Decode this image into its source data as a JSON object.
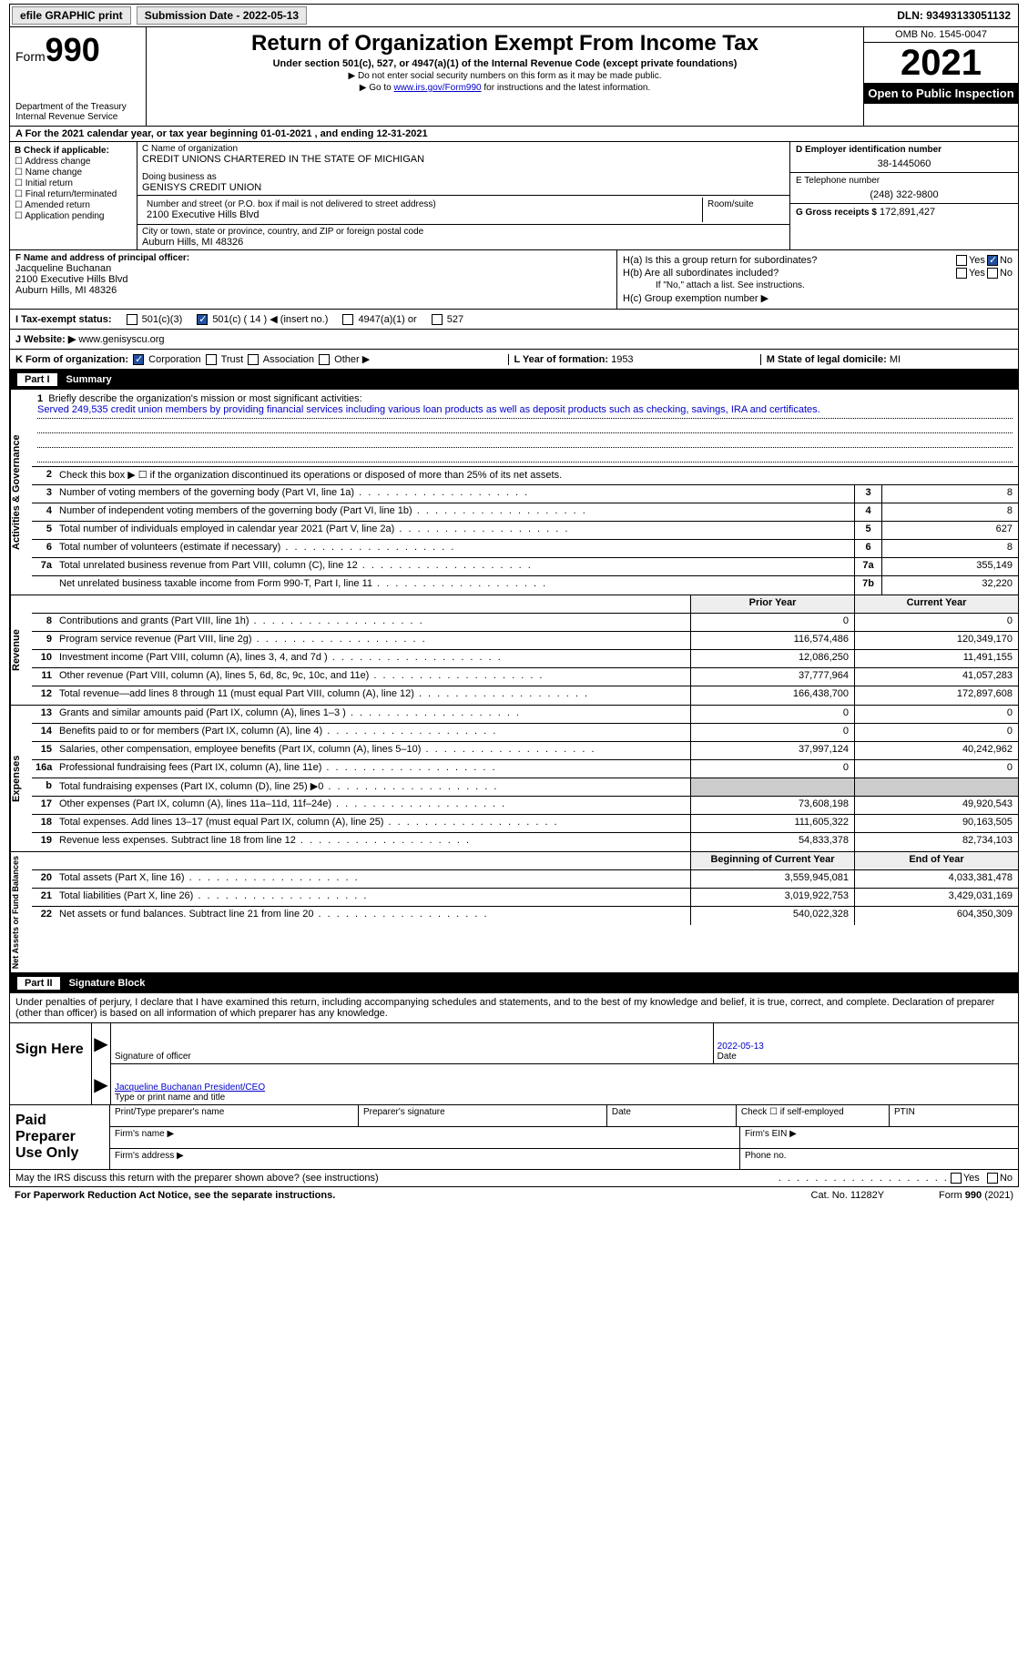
{
  "topbar": {
    "efile": "efile GRAPHIC print",
    "submission": "Submission Date - 2022-05-13",
    "dln_label": "DLN:",
    "dln": "93493133051132"
  },
  "header": {
    "form_label": "Form",
    "form_num": "990",
    "dept": "Department of the Treasury\nInternal Revenue Service",
    "title": "Return of Organization Exempt From Income Tax",
    "subtitle": "Under section 501(c), 527, or 4947(a)(1) of the Internal Revenue Code (except private foundations)",
    "note1": "▶ Do not enter social security numbers on this form as it may be made public.",
    "note2_prefix": "▶ Go to ",
    "note2_link": "www.irs.gov/Form990",
    "note2_suffix": " for instructions and the latest information.",
    "omb": "OMB No. 1545-0047",
    "year": "2021",
    "otp": "Open to Public Inspection"
  },
  "row_a": "A For the 2021 calendar year, or tax year beginning 01-01-2021   , and ending 12-31-2021",
  "col_b": {
    "title": "B Check if applicable:",
    "items": [
      "Address change",
      "Name change",
      "Initial return",
      "Final return/terminated",
      "Amended return",
      "Application pending"
    ]
  },
  "col_c": {
    "name_label": "C Name of organization",
    "name": "CREDIT UNIONS CHARTERED IN THE STATE OF MICHIGAN",
    "dba_label": "Doing business as",
    "dba": "GENISYS CREDIT UNION",
    "addr_label": "Number and street (or P.O. box if mail is not delivered to street address)",
    "addr": "2100 Executive Hills Blvd",
    "room_label": "Room/suite",
    "city_label": "City or town, state or province, country, and ZIP or foreign postal code",
    "city": "Auburn Hills, MI  48326"
  },
  "col_d": {
    "ein_label": "D Employer identification number",
    "ein": "38-1445060",
    "tel_label": "E Telephone number",
    "tel": "(248) 322-9800",
    "gross_label": "G Gross receipts $",
    "gross": "172,891,427"
  },
  "row_f": {
    "label": "F Name and address of principal officer:",
    "name": "Jacqueline Buchanan",
    "addr1": "2100 Executive Hills Blvd",
    "addr2": "Auburn Hills, MI  48326"
  },
  "row_h": {
    "ha": "H(a)  Is this a group return for subordinates?",
    "hb": "H(b)  Are all subordinates included?",
    "hb_note": "If \"No,\" attach a list. See instructions.",
    "hc": "H(c)  Group exemption number ▶",
    "yes": "Yes",
    "no": "No"
  },
  "row_i": {
    "label": "I  Tax-exempt status:",
    "opt1": "501(c)(3)",
    "opt2": "501(c) ( 14 ) ◀ (insert no.)",
    "opt3": "4947(a)(1) or",
    "opt4": "527"
  },
  "row_j": {
    "label": "J  Website: ▶",
    "val": "www.genisyscu.org"
  },
  "row_k": {
    "label": "K Form of organization:",
    "corp": "Corporation",
    "trust": "Trust",
    "assoc": "Association",
    "other": "Other ▶",
    "l_label": "L Year of formation:",
    "l_val": "1953",
    "m_label": "M State of legal domicile:",
    "m_val": "MI"
  },
  "part1": {
    "num": "Part I",
    "title": "Summary"
  },
  "summary": {
    "activities_label": "Activities & Governance",
    "revenue_label": "Revenue",
    "expenses_label": "Expenses",
    "netassets_label": "Net Assets or Fund Balances",
    "line1_label": "Briefly describe the organization's mission or most significant activities:",
    "line1_text": "Served 249,535 credit union members by providing financial services including various loan products as well as deposit products such as checking, savings, IRA and certificates.",
    "line2": "Check this box ▶ ☐ if the organization discontinued its operations or disposed of more than 25% of its net assets.",
    "lines_simple": [
      {
        "n": "3",
        "t": "Number of voting members of the governing body (Part VI, line 1a)",
        "b": "3",
        "v": "8"
      },
      {
        "n": "4",
        "t": "Number of independent voting members of the governing body (Part VI, line 1b)",
        "b": "4",
        "v": "8"
      },
      {
        "n": "5",
        "t": "Total number of individuals employed in calendar year 2021 (Part V, line 2a)",
        "b": "5",
        "v": "627"
      },
      {
        "n": "6",
        "t": "Total number of volunteers (estimate if necessary)",
        "b": "6",
        "v": "8"
      },
      {
        "n": "7a",
        "t": "Total unrelated business revenue from Part VIII, column (C), line 12",
        "b": "7a",
        "v": "355,149"
      },
      {
        "n": "",
        "t": "Net unrelated business taxable income from Form 990-T, Part I, line 11",
        "b": "7b",
        "v": "32,220"
      }
    ],
    "col_hdr_prior": "Prior Year",
    "col_hdr_current": "Current Year",
    "revenue_lines": [
      {
        "n": "8",
        "t": "Contributions and grants (Part VIII, line 1h)",
        "p": "0",
        "c": "0"
      },
      {
        "n": "9",
        "t": "Program service revenue (Part VIII, line 2g)",
        "p": "116,574,486",
        "c": "120,349,170"
      },
      {
        "n": "10",
        "t": "Investment income (Part VIII, column (A), lines 3, 4, and 7d )",
        "p": "12,086,250",
        "c": "11,491,155"
      },
      {
        "n": "11",
        "t": "Other revenue (Part VIII, column (A), lines 5, 6d, 8c, 9c, 10c, and 11e)",
        "p": "37,777,964",
        "c": "41,057,283"
      },
      {
        "n": "12",
        "t": "Total revenue—add lines 8 through 11 (must equal Part VIII, column (A), line 12)",
        "p": "166,438,700",
        "c": "172,897,608"
      }
    ],
    "expense_lines": [
      {
        "n": "13",
        "t": "Grants and similar amounts paid (Part IX, column (A), lines 1–3 )",
        "p": "0",
        "c": "0"
      },
      {
        "n": "14",
        "t": "Benefits paid to or for members (Part IX, column (A), line 4)",
        "p": "0",
        "c": "0"
      },
      {
        "n": "15",
        "t": "Salaries, other compensation, employee benefits (Part IX, column (A), lines 5–10)",
        "p": "37,997,124",
        "c": "40,242,962"
      },
      {
        "n": "16a",
        "t": "Professional fundraising fees (Part IX, column (A), line 11e)",
        "p": "0",
        "c": "0"
      },
      {
        "n": "b",
        "t": "Total fundraising expenses (Part IX, column (D), line 25) ▶0",
        "p": "",
        "c": "",
        "shade": true
      },
      {
        "n": "17",
        "t": "Other expenses (Part IX, column (A), lines 11a–11d, 11f–24e)",
        "p": "73,608,198",
        "c": "49,920,543"
      },
      {
        "n": "18",
        "t": "Total expenses. Add lines 13–17 (must equal Part IX, column (A), line 25)",
        "p": "111,605,322",
        "c": "90,163,505"
      },
      {
        "n": "19",
        "t": "Revenue less expenses. Subtract line 18 from line 12",
        "p": "54,833,378",
        "c": "82,734,103"
      }
    ],
    "col_hdr_begin": "Beginning of Current Year",
    "col_hdr_end": "End of Year",
    "net_lines": [
      {
        "n": "20",
        "t": "Total assets (Part X, line 16)",
        "p": "3,559,945,081",
        "c": "4,033,381,478"
      },
      {
        "n": "21",
        "t": "Total liabilities (Part X, line 26)",
        "p": "3,019,922,753",
        "c": "3,429,031,169"
      },
      {
        "n": "22",
        "t": "Net assets or fund balances. Subtract line 21 from line 20",
        "p": "540,022,328",
        "c": "604,350,309"
      }
    ]
  },
  "part2": {
    "num": "Part II",
    "title": "Signature Block"
  },
  "sig": {
    "intro": "Under penalties of perjury, I declare that I have examined this return, including accompanying schedules and statements, and to the best of my knowledge and belief, it is true, correct, and complete. Declaration of preparer (other than officer) is based on all information of which preparer has any knowledge.",
    "sign_here": "Sign Here",
    "sig_officer": "Signature of officer",
    "date": "Date",
    "date_val": "2022-05-13",
    "officer_name": "Jacqueline Buchanan  President/CEO",
    "name_label": "Type or print name and title"
  },
  "ppu": {
    "title": "Paid Preparer Use Only",
    "r1c1": "Print/Type preparer's name",
    "r1c2": "Preparer's signature",
    "r1c3": "Date",
    "r1c4": "Check ☐ if self-employed",
    "r1c5": "PTIN",
    "r2c1": "Firm's name   ▶",
    "r2c2": "Firm's EIN ▶",
    "r3c1": "Firm's address ▶",
    "r3c2": "Phone no."
  },
  "footer": {
    "discuss": "May the IRS discuss this return with the preparer shown above? (see instructions)",
    "yes": "Yes",
    "no": "No",
    "pra": "For Paperwork Reduction Act Notice, see the separate instructions.",
    "cat": "Cat. No. 11282Y",
    "form": "Form 990 (2021)"
  }
}
